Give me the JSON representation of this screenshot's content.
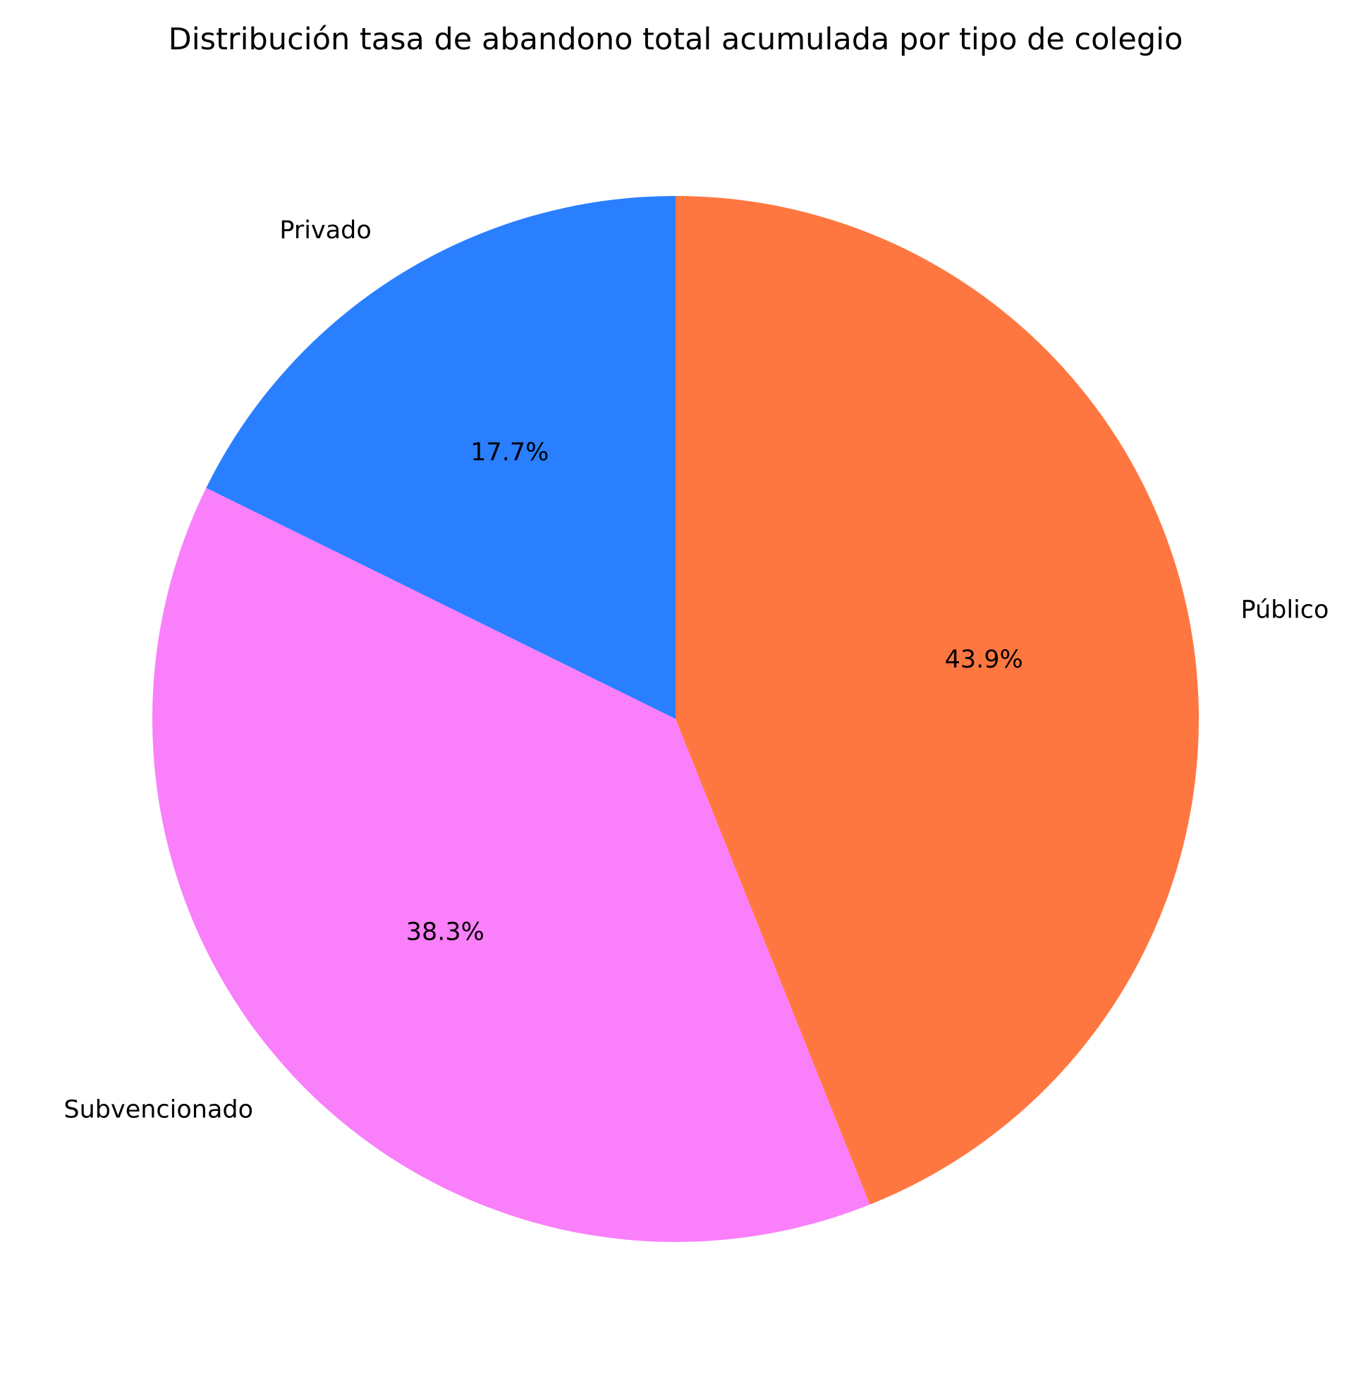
{
  "chart_data": {
    "type": "pie",
    "title": "Distribución tasa de abandono total acumulada por tipo de colegio",
    "start_angle_deg": 90,
    "direction": "counterclockwise",
    "slices": [
      {
        "label": "Privado",
        "value": 17.7,
        "pct_label": "17.7%",
        "color": "#2a7fff"
      },
      {
        "label": "Subvencionado",
        "value": 38.3,
        "pct_label": "38.3%",
        "color": "#fa7ffa"
      },
      {
        "label": "Público",
        "value": 43.9,
        "pct_label": "43.9%",
        "color": "#ff7740"
      }
    ]
  }
}
